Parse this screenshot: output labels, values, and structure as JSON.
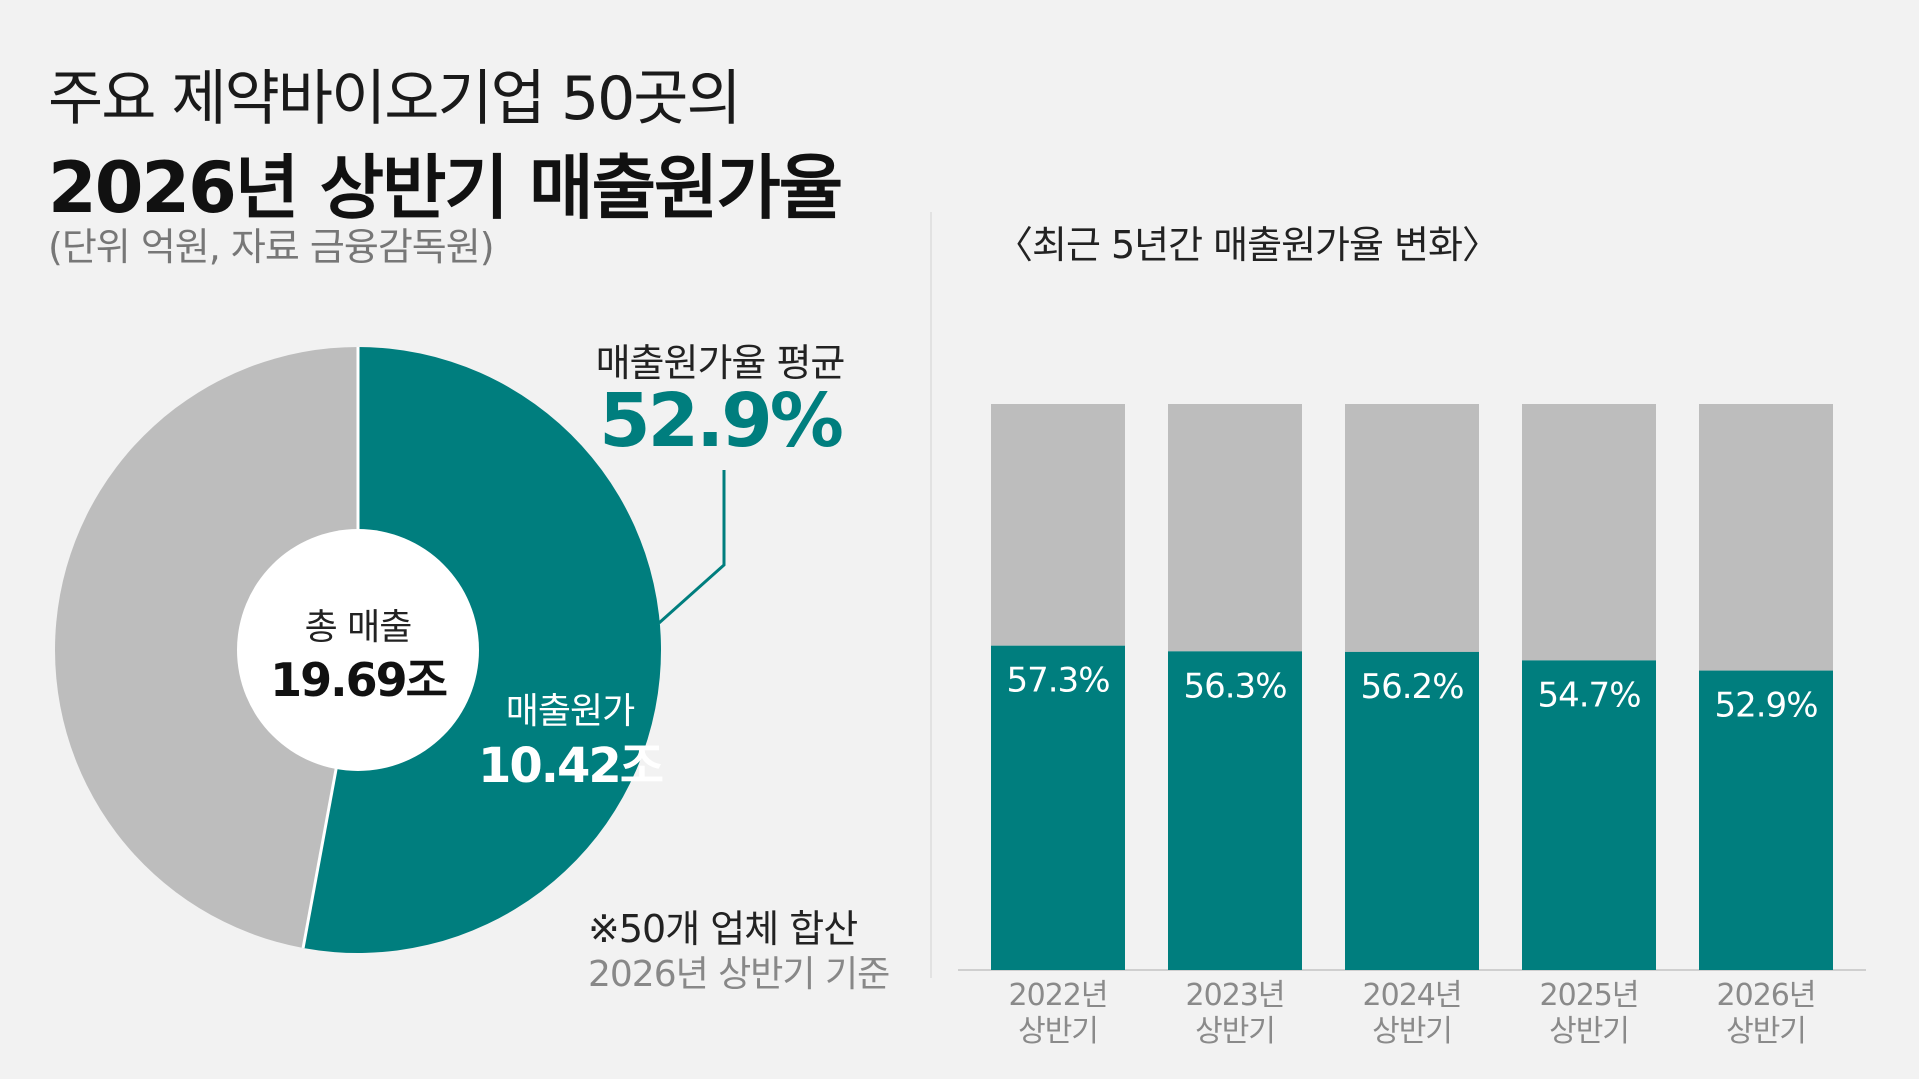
{
  "title": {
    "line1": "주요 제약바이오기업 50곳의",
    "line2": "2026년 상반기 매출원가율"
  },
  "unit_note": "(단위 억원, 자료 금융감독원)",
  "colors": {
    "teal": "#007e7e",
    "gray": "#bdbdbd",
    "background": "#f2f2f2"
  },
  "donut": {
    "center_caption": "총 매출",
    "center_value": "19.69조",
    "segment_caption": "매출원가",
    "segment_value": "10.42조",
    "average_caption": "매출원가율 평균",
    "average_value": "52.9%"
  },
  "footnote": {
    "line1": "※50개 업체 합산",
    "line2": "2026년 상반기 기준"
  },
  "chart_data": [
    {
      "type": "pie",
      "values": [
        52.9,
        47.1
      ],
      "unit": "%",
      "colors": [
        "#007e7e",
        "#bdbdbd"
      ]
    },
    {
      "type": "bar",
      "stacked": true,
      "title": "〈최근 5년간 매출원가율 변화〉",
      "categories": [
        [
          "2022년",
          "상반기"
        ],
        [
          "2023년",
          "상반기"
        ],
        [
          "2024년",
          "상반기"
        ],
        [
          "2025년",
          "상반기"
        ],
        [
          "2026년",
          "상반기"
        ]
      ],
      "values": [
        57.3,
        56.3,
        56.2,
        54.7,
        52.9
      ],
      "labels": [
        "57.3%",
        "56.3%",
        "56.2%",
        "54.7%",
        "52.9%"
      ],
      "ylim": [
        0,
        100
      ],
      "grid": false
    }
  ]
}
